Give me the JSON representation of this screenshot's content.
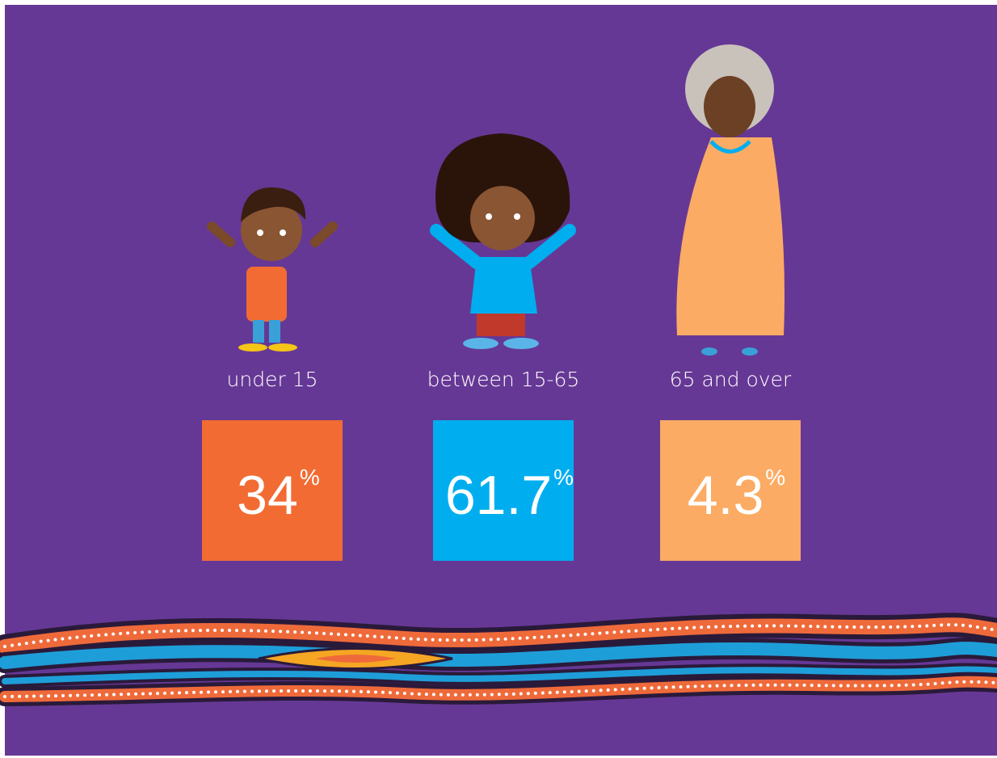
{
  "groups": [
    {
      "label": "under 15",
      "value": "34",
      "unit": "%",
      "color": "#f26b33"
    },
    {
      "label": "between 15-65",
      "value": "61.7",
      "unit": "%",
      "color": "#00aeef"
    },
    {
      "label": "65 and over",
      "value": "4.3",
      "unit": "%",
      "color": "#fbab64"
    }
  ]
}
